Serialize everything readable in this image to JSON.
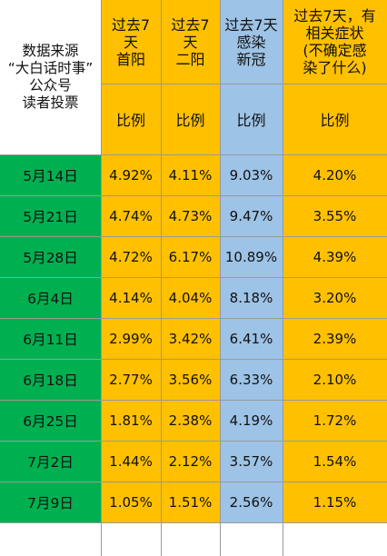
{
  "colors": {
    "date_bg": "#00B050",
    "value_bg": "#FFC000",
    "covid_bg": "#9DC3E6",
    "blank_bg": "#FFFFFF",
    "grid": "#9A9A9A"
  },
  "source_label": "数据来源\n“大白话时事”\n公众号\n读者投票",
  "chart_data": {
    "type": "table",
    "columns": [
      {
        "header": "过去7\n天\n首阳",
        "subheader": "比例",
        "color": "value_bg"
      },
      {
        "header": "过去7\n天\n二阳",
        "subheader": "比例",
        "color": "value_bg"
      },
      {
        "header": "过去7天\n感染\n新冠",
        "subheader": "比例",
        "color": "covid_bg"
      },
      {
        "header": "过去7天，有\n相关症状\n(不确定感\n染了什么)",
        "subheader": "比例",
        "color": "value_bg"
      }
    ],
    "rows": [
      {
        "date": "5月14日",
        "values": [
          "4.92%",
          "4.11%",
          "9.03%",
          "4.20%"
        ]
      },
      {
        "date": "5月21日",
        "values": [
          "4.74%",
          "4.73%",
          "9.47%",
          "3.55%"
        ]
      },
      {
        "date": "5月28日",
        "values": [
          "4.72%",
          "6.17%",
          "10.89%",
          "4.39%"
        ]
      },
      {
        "date": "6月4日",
        "values": [
          "4.14%",
          "4.04%",
          "8.18%",
          "3.20%"
        ]
      },
      {
        "date": "6月11日",
        "values": [
          "2.99%",
          "3.42%",
          "6.41%",
          "2.39%"
        ]
      },
      {
        "date": "6月18日",
        "values": [
          "2.77%",
          "3.56%",
          "6.33%",
          "2.10%"
        ]
      },
      {
        "date": "6月25日",
        "values": [
          "1.81%",
          "2.38%",
          "4.19%",
          "1.72%"
        ]
      },
      {
        "date": "7月2日",
        "values": [
          "1.44%",
          "2.12%",
          "3.57%",
          "1.54%"
        ]
      },
      {
        "date": "7月9日",
        "values": [
          "1.05%",
          "1.51%",
          "2.56%",
          "1.15%"
        ]
      }
    ]
  }
}
